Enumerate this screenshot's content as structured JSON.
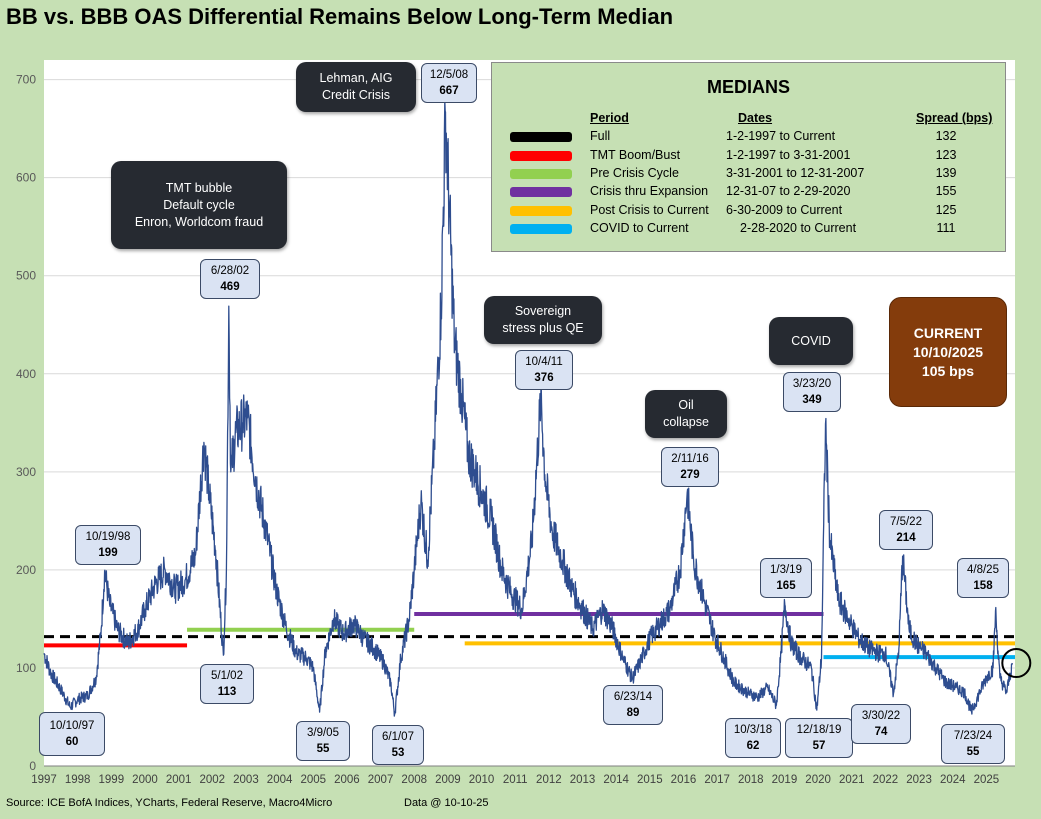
{
  "title": "BB vs. BBB OAS Differential Remains Below Long-Term Median",
  "footer": {
    "source": "Source: ICE BofA Indices, YCharts, Federal Reserve, Macro4Micro",
    "date": "Data @ 10-10-25"
  },
  "colors": {
    "series": "#2e4d8f",
    "background": "#c6e0b4",
    "plot": "#ffffff",
    "current_box": "#843c0c"
  },
  "chart_data": {
    "type": "line",
    "title": "BB vs. BBB OAS Differential Remains Below Long-Term Median",
    "xlabel": "",
    "ylabel": "",
    "xlim": [
      1997.0,
      2025.85
    ],
    "ylim": [
      0,
      720
    ],
    "y_ticks": [
      0,
      100,
      200,
      300,
      400,
      500,
      600,
      700
    ],
    "x_ticks": [
      "1997",
      "1998",
      "1999",
      "2000",
      "2001",
      "2002",
      "2003",
      "2004",
      "2005",
      "2006",
      "2007",
      "2008",
      "2009",
      "2010",
      "2011",
      "2012",
      "2013",
      "2014",
      "2015",
      "2016",
      "2017",
      "2018",
      "2019",
      "2020",
      "2021",
      "2022",
      "2023",
      "2024",
      "2025"
    ],
    "grid": "horizontal",
    "series": [
      {
        "points": [
          [
            1997.0,
            115
          ],
          [
            1997.2,
            95
          ],
          [
            1997.5,
            78
          ],
          [
            1997.78,
            60
          ],
          [
            1998.0,
            68
          ],
          [
            1998.3,
            72
          ],
          [
            1998.55,
            90
          ],
          [
            1998.7,
            140
          ],
          [
            1998.8,
            199
          ],
          [
            1998.95,
            165
          ],
          [
            1999.2,
            138
          ],
          [
            1999.5,
            125
          ],
          [
            1999.8,
            140
          ],
          [
            2000.0,
            160
          ],
          [
            2000.3,
            185
          ],
          [
            2000.6,
            200
          ],
          [
            2000.9,
            180
          ],
          [
            2001.2,
            190
          ],
          [
            2001.5,
            215
          ],
          [
            2001.75,
            330
          ],
          [
            2001.9,
            280
          ],
          [
            2002.1,
            220
          ],
          [
            2002.33,
            113
          ],
          [
            2002.42,
            200
          ],
          [
            2002.49,
            469
          ],
          [
            2002.55,
            300
          ],
          [
            2002.7,
            340
          ],
          [
            2002.9,
            350
          ],
          [
            2003.05,
            355
          ],
          [
            2003.3,
            290
          ],
          [
            2003.6,
            240
          ],
          [
            2003.9,
            180
          ],
          [
            2004.2,
            140
          ],
          [
            2004.5,
            115
          ],
          [
            2004.8,
            110
          ],
          [
            2005.0,
            100
          ],
          [
            2005.19,
            55
          ],
          [
            2005.35,
            115
          ],
          [
            2005.6,
            150
          ],
          [
            2005.9,
            135
          ],
          [
            2006.2,
            145
          ],
          [
            2006.5,
            130
          ],
          [
            2006.8,
            120
          ],
          [
            2007.1,
            105
          ],
          [
            2007.3,
            85
          ],
          [
            2007.42,
            53
          ],
          [
            2007.6,
            110
          ],
          [
            2007.85,
            150
          ],
          [
            2008.0,
            200
          ],
          [
            2008.2,
            270
          ],
          [
            2008.4,
            210
          ],
          [
            2008.6,
            330
          ],
          [
            2008.8,
            470
          ],
          [
            2008.93,
            667
          ],
          [
            2009.05,
            560
          ],
          [
            2009.2,
            430
          ],
          [
            2009.4,
            380
          ],
          [
            2009.6,
            320
          ],
          [
            2009.8,
            300
          ],
          [
            2010.0,
            280
          ],
          [
            2010.3,
            250
          ],
          [
            2010.6,
            200
          ],
          [
            2010.9,
            175
          ],
          [
            2011.2,
            160
          ],
          [
            2011.5,
            230
          ],
          [
            2011.76,
            376
          ],
          [
            2011.9,
            290
          ],
          [
            2012.1,
            240
          ],
          [
            2012.4,
            210
          ],
          [
            2012.7,
            180
          ],
          [
            2013.0,
            160
          ],
          [
            2013.3,
            140
          ],
          [
            2013.6,
            160
          ],
          [
            2013.9,
            140
          ],
          [
            2014.2,
            110
          ],
          [
            2014.48,
            89
          ],
          [
            2014.7,
            105
          ],
          [
            2015.0,
            130
          ],
          [
            2015.3,
            145
          ],
          [
            2015.6,
            160
          ],
          [
            2015.9,
            200
          ],
          [
            2016.11,
            279
          ],
          [
            2016.3,
            210
          ],
          [
            2016.6,
            170
          ],
          [
            2016.9,
            135
          ],
          [
            2017.2,
            110
          ],
          [
            2017.5,
            85
          ],
          [
            2017.9,
            75
          ],
          [
            2018.2,
            70
          ],
          [
            2018.5,
            80
          ],
          [
            2018.76,
            62
          ],
          [
            2018.9,
            115
          ],
          [
            2019.01,
            165
          ],
          [
            2019.2,
            125
          ],
          [
            2019.5,
            110
          ],
          [
            2019.8,
            100
          ],
          [
            2019.96,
            57
          ],
          [
            2020.1,
            110
          ],
          [
            2020.22,
            349
          ],
          [
            2020.35,
            230
          ],
          [
            2020.6,
            170
          ],
          [
            2020.9,
            150
          ],
          [
            2021.2,
            130
          ],
          [
            2021.5,
            120
          ],
          [
            2021.8,
            115
          ],
          [
            2022.0,
            115
          ],
          [
            2022.24,
            74
          ],
          [
            2022.4,
            120
          ],
          [
            2022.51,
            214
          ],
          [
            2022.7,
            140
          ],
          [
            2022.9,
            125
          ],
          [
            2023.2,
            115
          ],
          [
            2023.5,
            100
          ],
          [
            2023.8,
            85
          ],
          [
            2024.1,
            80
          ],
          [
            2024.35,
            75
          ],
          [
            2024.56,
            55
          ],
          [
            2024.8,
            75
          ],
          [
            2025.0,
            90
          ],
          [
            2025.2,
            100
          ],
          [
            2025.27,
            158
          ],
          [
            2025.4,
            90
          ],
          [
            2025.6,
            75
          ],
          [
            2025.77,
            105
          ]
        ]
      }
    ],
    "medians": [
      {
        "period": "Full",
        "dates": "1-2-1997  to Current",
        "spread": "132",
        "color": "#000000",
        "x_start": 1997.0,
        "x_end": 2025.85,
        "value": 132,
        "dashed": true
      },
      {
        "period": "TMT Boom/Bust",
        "dates": "1-2-1997  to 3-31-2001",
        "spread": "123",
        "color": "#ff0000",
        "x_start": 1997.0,
        "x_end": 2001.25,
        "value": 123,
        "dashed": false
      },
      {
        "period": "Pre Crisis Cycle",
        "dates": "3-31-2001  to 12-31-2007",
        "spread": "139",
        "color": "#92d050",
        "x_start": 2001.25,
        "x_end": 2008.0,
        "value": 139,
        "dashed": false
      },
      {
        "period": "Crisis thru Expansion",
        "dates": "12-31-07  to 2-29-2020",
        "spread": "155",
        "color": "#7030a0",
        "x_start": 2008.0,
        "x_end": 2020.16,
        "value": 155,
        "dashed": false
      },
      {
        "period": "Post Crisis to Current",
        "dates": "6-30-2009  to Current",
        "spread": "125",
        "color": "#ffc000",
        "x_start": 2009.5,
        "x_end": 2025.85,
        "value": 125,
        "dashed": false
      },
      {
        "period": "COVID to Current",
        "dates": "2-28-2020  to Current",
        "spread": "111",
        "color": "#00b0f0",
        "x_start": 2020.16,
        "x_end": 2025.85,
        "value": 111,
        "dashed": false
      }
    ]
  },
  "medians_table": {
    "title": "MEDIANS",
    "header_period": "Period",
    "header_dates": "Dates",
    "header_spread": "Spread (bps)"
  },
  "event_callouts": [
    {
      "lines": [
        "Lehman, AIG",
        "Credit Crisis"
      ]
    },
    {
      "lines": [
        "TMT bubble",
        "Default cycle",
        "Enron, Worldcom fraud"
      ]
    },
    {
      "lines": [
        "Sovereign",
        "stress plus QE"
      ]
    },
    {
      "lines": [
        "Oil",
        "collapse"
      ]
    },
    {
      "lines": [
        "COVID"
      ]
    }
  ],
  "point_labels": [
    {
      "date": "12/5/08",
      "value": "667"
    },
    {
      "date": "6/28/02",
      "value": "469"
    },
    {
      "date": "10/19/98",
      "value": "199"
    },
    {
      "date": "10/4/11",
      "value": "376"
    },
    {
      "date": "2/11/16",
      "value": "279"
    },
    {
      "date": "3/23/20",
      "value": "349"
    },
    {
      "date": "1/3/19",
      "value": "165"
    },
    {
      "date": "7/5/22",
      "value": "214"
    },
    {
      "date": "4/8/25",
      "value": "158"
    },
    {
      "date": "10/10/97",
      "value": "60"
    },
    {
      "date": "5/1/02",
      "value": "113"
    },
    {
      "date": "3/9/05",
      "value": "55"
    },
    {
      "date": "6/1/07",
      "value": "53"
    },
    {
      "date": "6/23/14",
      "value": "89"
    },
    {
      "date": "10/3/18",
      "value": "62"
    },
    {
      "date": "12/18/19",
      "value": "57"
    },
    {
      "date": "3/30/22",
      "value": "74"
    },
    {
      "date": "7/23/24",
      "value": "55"
    }
  ],
  "current": {
    "label": "CURRENT",
    "date": "10/10/2025",
    "value": "105 bps"
  }
}
